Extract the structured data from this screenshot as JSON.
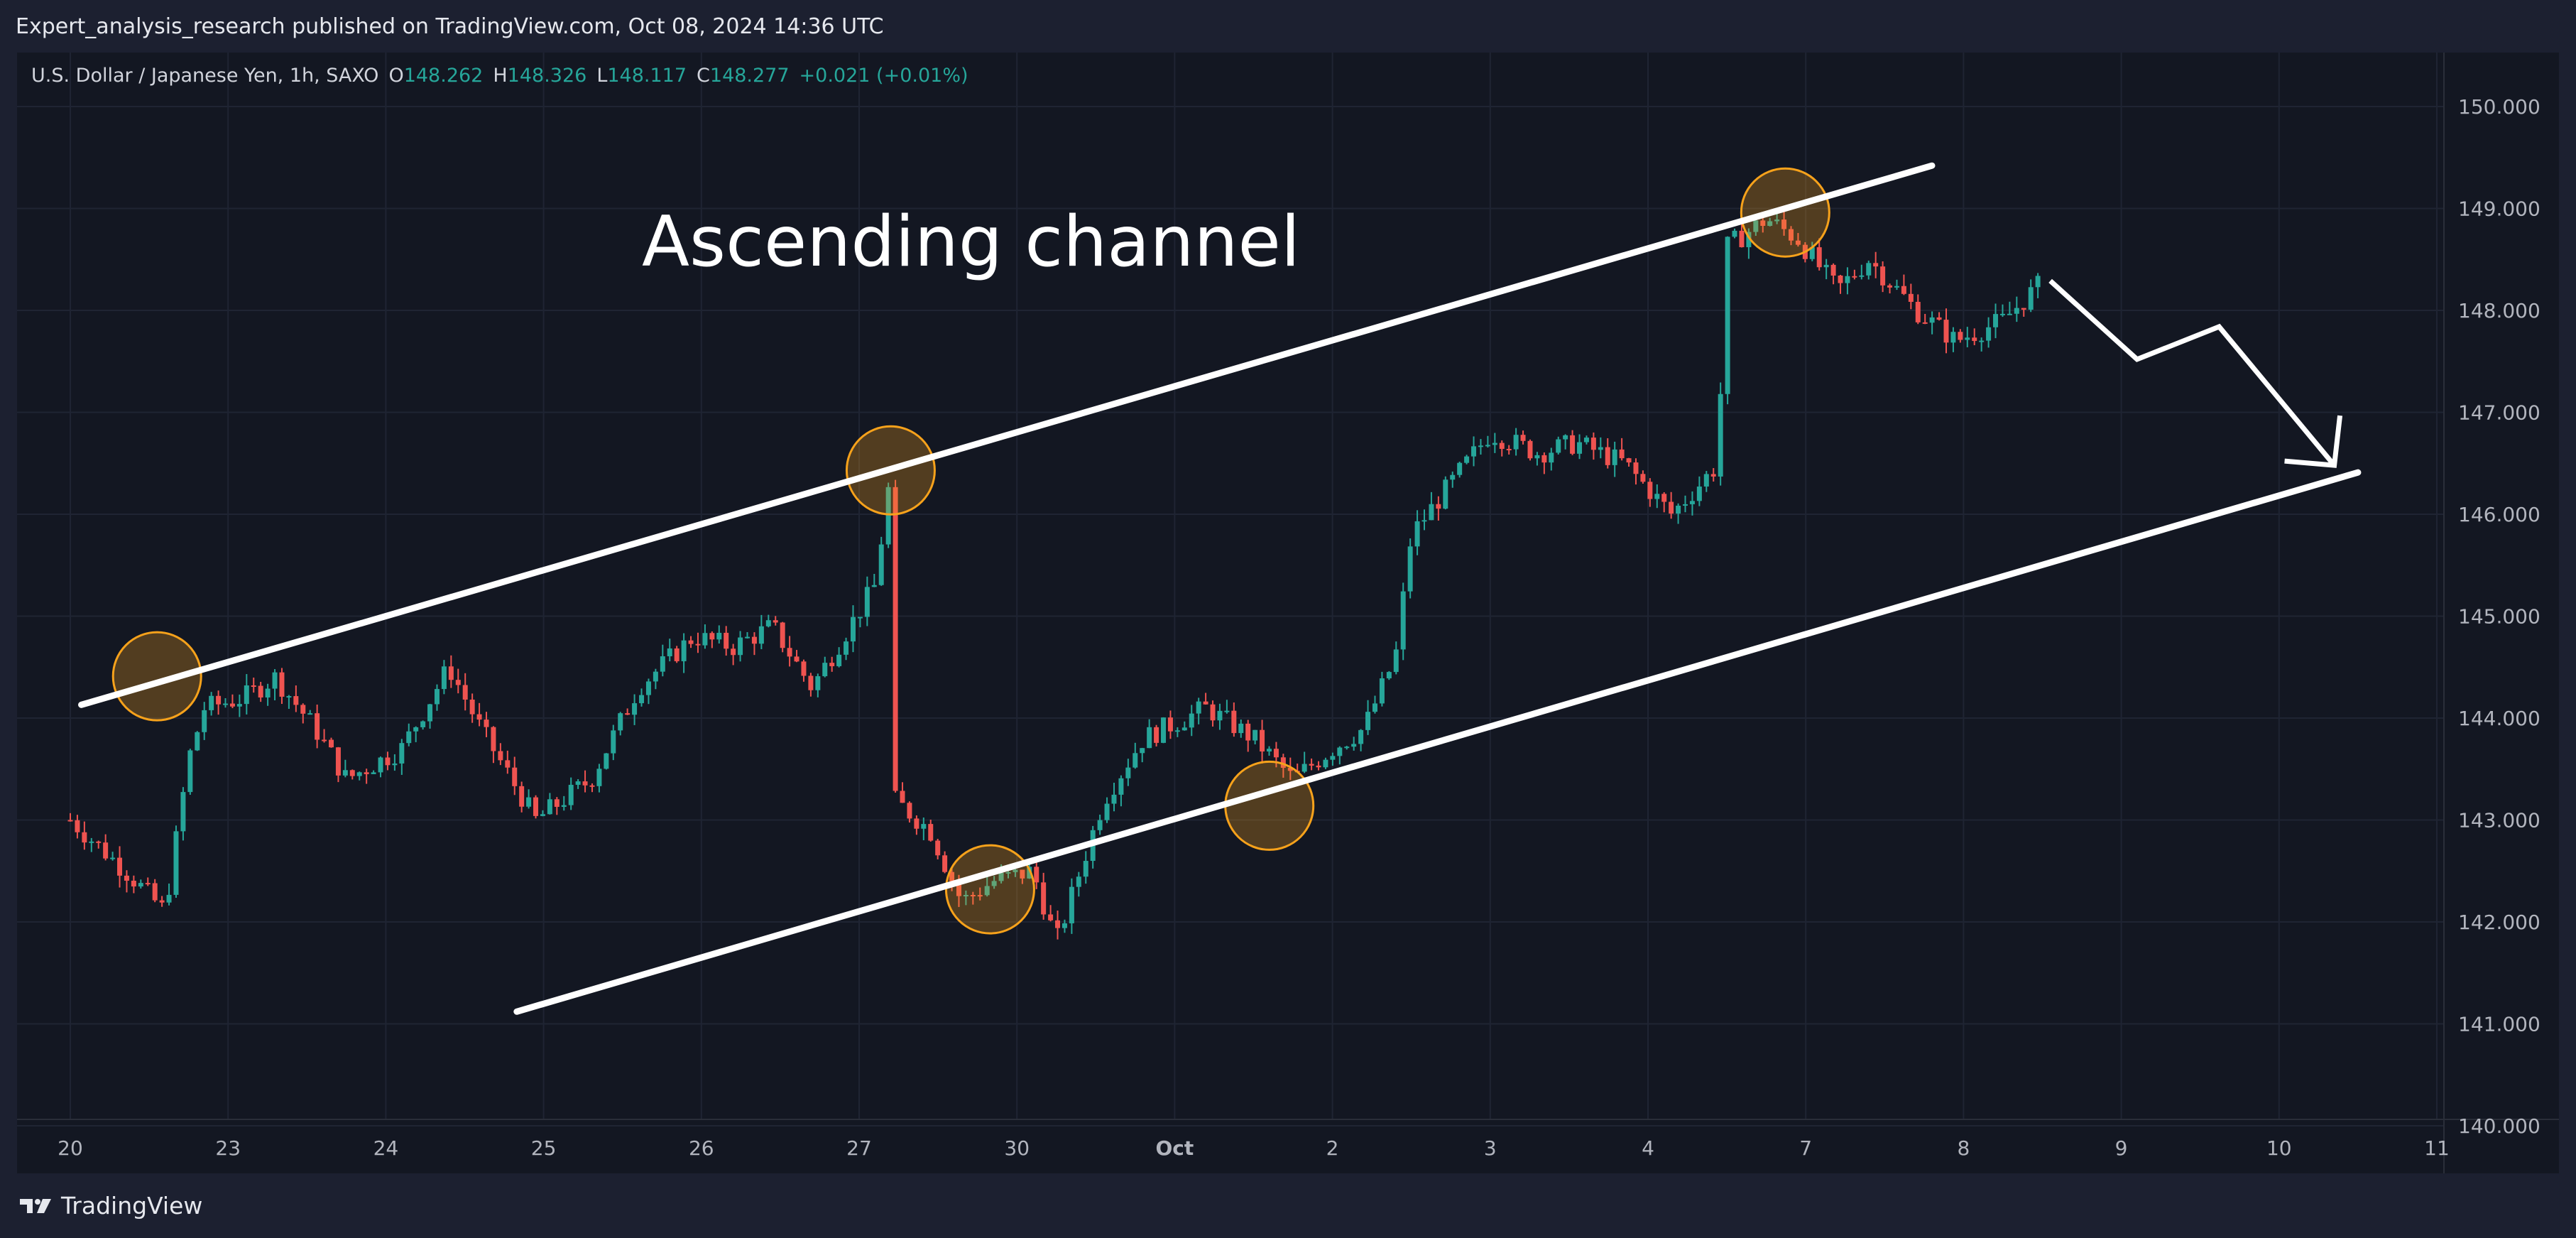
{
  "header": {
    "publisher_line": "Expert_analysis_research published on TradingView.com, Oct 08, 2024 14:36 UTC"
  },
  "legend": {
    "symbol": "U.S. Dollar / Japanese Yen, 1h, SAXO",
    "o_label": "O",
    "o_value": "148.262",
    "h_label": "H",
    "h_value": "148.326",
    "l_label": "L",
    "l_value": "148.117",
    "c_label": "C",
    "c_value": "148.277",
    "change": "+0.021 (+0.01%)"
  },
  "footer": {
    "brand": "TradingView"
  },
  "colors": {
    "up": "#26a69a",
    "down": "#ef5350",
    "background": "#131722",
    "grid": "#1f2433",
    "axis_text": "#b2b5be",
    "annotation": "#ffffff",
    "highlight": "#f7a21b"
  },
  "chart_data": {
    "type": "candlestick",
    "title": "",
    "symbol": "U.S. Dollar / Japanese Yen",
    "interval": "1h",
    "exchange": "SAXO",
    "y_axis": {
      "position": "right",
      "range": [
        140.0,
        150.3
      ],
      "ticks": [
        "150.000",
        "149.000",
        "148.000",
        "147.000",
        "146.000",
        "145.000",
        "144.000",
        "143.000",
        "142.000",
        "141.000",
        "140.000"
      ]
    },
    "x_axis": {
      "ticks": [
        "20",
        "23",
        "24",
        "25",
        "26",
        "27",
        "30",
        "Oct",
        "2",
        "3",
        "4",
        "7",
        "8",
        "9",
        "10",
        "11"
      ],
      "bold_ticks": [
        "Oct"
      ]
    },
    "grid": true,
    "price_path": [
      [
        0,
        143.0
      ],
      [
        0.35,
        142.5
      ],
      [
        0.6,
        142.1
      ],
      [
        0.75,
        143.6
      ],
      [
        0.85,
        144.1
      ],
      [
        1.1,
        144.2
      ],
      [
        1.3,
        144.4
      ],
      [
        1.55,
        143.9
      ],
      [
        1.75,
        143.4
      ],
      [
        2.1,
        143.7
      ],
      [
        2.4,
        144.5
      ],
      [
        2.6,
        143.9
      ],
      [
        2.95,
        143.0
      ],
      [
        3.3,
        143.4
      ],
      [
        3.6,
        144.3
      ],
      [
        3.95,
        144.8
      ],
      [
        4.2,
        144.7
      ],
      [
        4.45,
        144.9
      ],
      [
        4.7,
        144.3
      ],
      [
        4.9,
        144.8
      ],
      [
        5.1,
        145.3
      ],
      [
        5.2,
        146.4
      ],
      [
        5.22,
        143.2
      ],
      [
        5.45,
        142.9
      ],
      [
        5.65,
        142.2
      ],
      [
        5.85,
        142.4
      ],
      [
        6.1,
        142.5
      ],
      [
        6.25,
        141.8
      ],
      [
        6.55,
        143.2
      ],
      [
        6.8,
        143.8
      ],
      [
        7.2,
        144.1
      ],
      [
        7.5,
        143.8
      ],
      [
        7.75,
        143.4
      ],
      [
        8.0,
        143.7
      ],
      [
        8.2,
        143.9
      ],
      [
        8.4,
        144.6
      ],
      [
        8.5,
        145.8
      ],
      [
        8.7,
        146.2
      ],
      [
        9.0,
        146.8
      ],
      [
        9.3,
        146.6
      ],
      [
        9.55,
        146.7
      ],
      [
        9.85,
        146.5
      ],
      [
        10.15,
        146.0
      ],
      [
        10.45,
        146.5
      ],
      [
        10.48,
        148.6
      ],
      [
        10.75,
        148.9
      ],
      [
        10.95,
        148.7
      ],
      [
        11.2,
        148.2
      ],
      [
        11.4,
        148.5
      ],
      [
        11.7,
        148.0
      ],
      [
        11.95,
        147.7
      ],
      [
        12.25,
        147.9
      ],
      [
        12.5,
        148.28
      ]
    ],
    "annotations": {
      "text": "Ascending channel",
      "upper_channel": [
        [
          0.07,
          144.13
        ],
        [
          11.8,
          149.42
        ]
      ],
      "lower_channel": [
        [
          2.83,
          141.12
        ],
        [
          14.5,
          146.41
        ]
      ],
      "projection_path": [
        [
          12.55,
          148.29
        ],
        [
          13.1,
          147.52
        ],
        [
          13.62,
          147.84
        ],
        [
          14.35,
          146.48
        ]
      ],
      "touch_points": [
        [
          0.55,
          144.41
        ],
        [
          5.2,
          146.43
        ],
        [
          5.83,
          142.32
        ],
        [
          7.6,
          143.14
        ],
        [
          10.87,
          148.96
        ]
      ]
    }
  }
}
